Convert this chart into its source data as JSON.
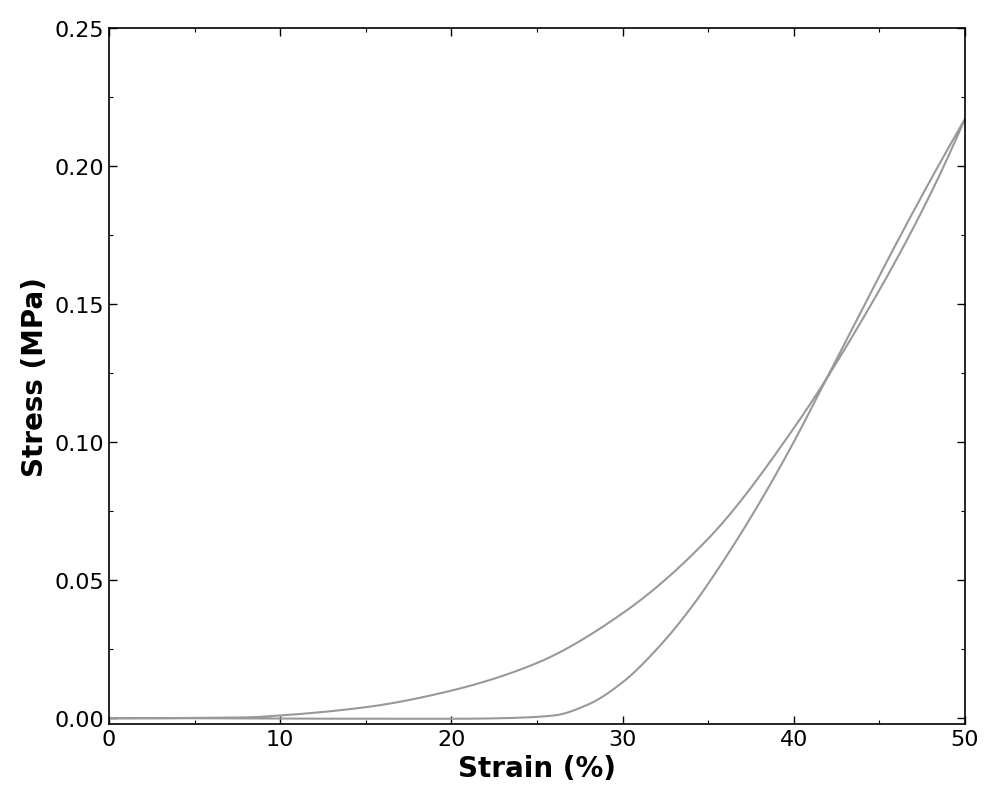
{
  "line_color": "#999999",
  "line_width": 1.5,
  "xlabel": "Strain (%)",
  "ylabel": "Stress (MPa)",
  "xlim": [
    0,
    50
  ],
  "ylim": [
    -0.002,
    0.25
  ],
  "xticks": [
    0,
    10,
    20,
    30,
    40,
    50
  ],
  "yticks": [
    0.0,
    0.05,
    0.1,
    0.15,
    0.2,
    0.25
  ],
  "xlabel_fontsize": 20,
  "ylabel_fontsize": 20,
  "tick_fontsize": 16,
  "background_color": "#ffffff",
  "figsize": [
    10.0,
    8.04
  ],
  "dpi": 100,
  "loading_key_points_strain": [
    0,
    8,
    10,
    15,
    20,
    25,
    30,
    35,
    40,
    45,
    48,
    50
  ],
  "loading_key_points_stress": [
    0,
    0.0003,
    0.001,
    0.004,
    0.01,
    0.02,
    0.038,
    0.065,
    0.105,
    0.155,
    0.19,
    0.217
  ],
  "unloading_key_points_strain": [
    50,
    48,
    46,
    44,
    42,
    40,
    38,
    36,
    34,
    32,
    30,
    28,
    26,
    24,
    22,
    20,
    15,
    10,
    5,
    0
  ],
  "unloading_key_points_stress": [
    0.217,
    0.195,
    0.172,
    0.148,
    0.124,
    0.1,
    0.078,
    0.058,
    0.04,
    0.025,
    0.013,
    0.005,
    0.001,
    0.0002,
    -0.0001,
    -0.0002,
    -0.0002,
    -0.0001,
    0.0,
    0.0
  ]
}
